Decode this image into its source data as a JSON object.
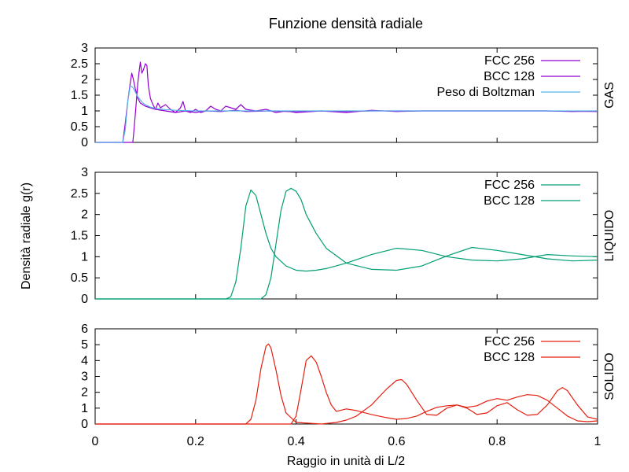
{
  "figure": {
    "title": "Funzione densità radiale",
    "xlabel": "Raggio in unità di L/2",
    "ylabel": "Densità radiale g(r)"
  },
  "chart_data": [
    {
      "type": "line",
      "panel_label": "GAS",
      "xlim": [
        0,
        1
      ],
      "ylim": [
        0,
        3
      ],
      "yticks": [
        "0",
        "0.5",
        "1",
        "1.5",
        "2",
        "2.5",
        "3"
      ],
      "grid": false,
      "legend": "top-right",
      "series": [
        {
          "name": "FCC 256",
          "color": "#9400d3",
          "x": [
            0.0,
            0.075,
            0.078,
            0.082,
            0.085,
            0.088,
            0.09,
            0.093,
            0.096,
            0.1,
            0.103,
            0.106,
            0.11,
            0.115,
            0.12,
            0.125,
            0.13,
            0.14,
            0.15,
            0.16,
            0.17,
            0.175,
            0.18,
            0.19,
            0.2,
            0.21,
            0.22,
            0.23,
            0.24,
            0.25,
            0.26,
            0.27,
            0.28,
            0.29,
            0.3,
            0.32,
            0.34,
            0.36,
            0.38,
            0.4,
            0.45,
            0.5,
            0.55,
            0.6,
            0.65,
            0.7,
            0.75,
            0.8,
            0.85,
            0.9,
            0.95,
            1.0
          ],
          "y": [
            0,
            0,
            0.5,
            1.3,
            1.9,
            2.3,
            2.55,
            2.2,
            2.3,
            2.5,
            2.45,
            1.8,
            1.4,
            1.2,
            1.05,
            1.25,
            1.1,
            1.2,
            1.05,
            0.95,
            1.1,
            1.3,
            1.0,
            0.95,
            1.05,
            0.95,
            1.0,
            1.15,
            1.05,
            1.0,
            1.15,
            1.1,
            1.05,
            1.2,
            1.05,
            1.0,
            1.05,
            0.95,
            1.0,
            0.95,
            1.0,
            0.95,
            1.02,
            0.98,
            1.0,
            1.0,
            1.0,
            1.0,
            1.0,
            1.0,
            0.98,
            1.0
          ]
        },
        {
          "name": "BCC 128",
          "color": "#9400d3",
          "x": [
            0.0,
            0.055,
            0.06,
            0.065,
            0.07,
            0.073,
            0.076,
            0.08,
            0.085,
            0.09,
            0.1,
            0.11,
            0.12,
            0.14,
            0.16,
            0.18,
            0.2,
            0.22,
            0.25,
            0.28,
            0.3,
            0.35,
            0.4,
            0.45,
            0.5,
            0.55,
            0.6,
            0.7,
            0.8,
            0.9,
            1.0
          ],
          "y": [
            0,
            0,
            0.6,
            1.3,
            1.9,
            2.2,
            2.0,
            1.7,
            1.4,
            1.25,
            1.15,
            1.1,
            1.05,
            1.0,
            0.95,
            1.0,
            0.95,
            1.0,
            0.98,
            1.02,
            0.98,
            1.0,
            0.97,
            1.0,
            0.98,
            1.0,
            1.0,
            1.0,
            1.0,
            1.0,
            0.98
          ]
        },
        {
          "name": "Peso di Boltzman",
          "color": "#56b4e9",
          "x": [
            0.0,
            0.055,
            0.06,
            0.065,
            0.07,
            0.075,
            0.08,
            0.085,
            0.09,
            0.095,
            0.1,
            0.11,
            0.12,
            0.14,
            0.16,
            0.2,
            0.3,
            0.4,
            0.6,
            0.8,
            1.0
          ],
          "y": [
            0,
            0,
            0.4,
            1.3,
            1.8,
            1.75,
            1.6,
            1.45,
            1.35,
            1.25,
            1.2,
            1.12,
            1.08,
            1.04,
            1.02,
            1.0,
            1.0,
            1.0,
            1.0,
            1.0,
            1.0
          ]
        }
      ]
    },
    {
      "type": "line",
      "panel_label": "LIQUIDO",
      "xlim": [
        0,
        1
      ],
      "ylim": [
        0,
        3
      ],
      "yticks": [
        "0",
        "0.5",
        "1",
        "1.5",
        "2",
        "2.5",
        "3"
      ],
      "grid": false,
      "legend": "top-right",
      "series": [
        {
          "name": "FCC 256",
          "color": "#009e73",
          "x": [
            0.0,
            0.26,
            0.27,
            0.28,
            0.29,
            0.3,
            0.31,
            0.32,
            0.33,
            0.34,
            0.35,
            0.36,
            0.38,
            0.4,
            0.42,
            0.44,
            0.46,
            0.5,
            0.55,
            0.6,
            0.65,
            0.7,
            0.75,
            0.8,
            0.85,
            0.9,
            0.95,
            1.0
          ],
          "y": [
            0,
            0,
            0.05,
            0.4,
            1.2,
            2.2,
            2.58,
            2.45,
            2.0,
            1.55,
            1.2,
            1.0,
            0.78,
            0.68,
            0.66,
            0.68,
            0.72,
            0.85,
            1.05,
            1.2,
            1.15,
            1.0,
            0.92,
            0.9,
            0.95,
            1.05,
            1.02,
            1.0
          ]
        },
        {
          "name": "BCC 128",
          "color": "#009e73",
          "x": [
            0.0,
            0.33,
            0.34,
            0.35,
            0.36,
            0.37,
            0.38,
            0.39,
            0.4,
            0.41,
            0.42,
            0.44,
            0.46,
            0.5,
            0.55,
            0.6,
            0.65,
            0.7,
            0.75,
            0.8,
            0.85,
            0.9,
            0.95,
            1.0
          ],
          "y": [
            0,
            0,
            0.1,
            0.5,
            1.3,
            2.1,
            2.55,
            2.62,
            2.55,
            2.35,
            2.0,
            1.55,
            1.2,
            0.85,
            0.7,
            0.68,
            0.78,
            1.02,
            1.22,
            1.15,
            1.05,
            0.95,
            0.9,
            0.92
          ]
        }
      ]
    },
    {
      "type": "line",
      "panel_label": "SOLIDO",
      "xlim": [
        0,
        1
      ],
      "ylim": [
        0,
        6
      ],
      "yticks": [
        "0",
        "1",
        "2",
        "3",
        "4",
        "5",
        "6"
      ],
      "grid": false,
      "legend": "top-right",
      "series": [
        {
          "name": "FCC 256",
          "color": "#e51e10",
          "x": [
            0.0,
            0.3,
            0.31,
            0.32,
            0.33,
            0.34,
            0.345,
            0.35,
            0.36,
            0.37,
            0.38,
            0.4,
            0.45,
            0.48,
            0.5,
            0.52,
            0.55,
            0.58,
            0.6,
            0.61,
            0.62,
            0.64,
            0.66,
            0.68,
            0.7,
            0.72,
            0.74,
            0.76,
            0.78,
            0.8,
            0.82,
            0.84,
            0.86,
            0.88,
            0.9,
            0.92,
            0.93,
            0.94,
            0.96,
            0.98,
            1.0
          ],
          "y": [
            0,
            0,
            0.3,
            1.5,
            3.5,
            4.9,
            5.05,
            4.8,
            3.4,
            1.8,
            0.7,
            0.1,
            0.0,
            0.1,
            0.25,
            0.5,
            1.2,
            2.2,
            2.75,
            2.8,
            2.5,
            1.5,
            0.6,
            0.55,
            1.0,
            1.2,
            1.0,
            0.6,
            0.7,
            1.15,
            1.35,
            0.9,
            0.55,
            0.6,
            1.2,
            2.1,
            2.3,
            2.1,
            1.2,
            0.45,
            0.3
          ]
        },
        {
          "name": "BCC 128",
          "color": "#e51e10",
          "x": [
            0.0,
            0.39,
            0.4,
            0.41,
            0.42,
            0.43,
            0.44,
            0.45,
            0.46,
            0.47,
            0.48,
            0.5,
            0.52,
            0.55,
            0.58,
            0.6,
            0.62,
            0.64,
            0.66,
            0.68,
            0.7,
            0.72,
            0.74,
            0.76,
            0.78,
            0.8,
            0.82,
            0.84,
            0.86,
            0.88,
            0.9,
            0.92,
            0.94,
            0.96,
            0.98,
            1.0
          ],
          "y": [
            0,
            0,
            0.5,
            2.2,
            4.0,
            4.3,
            3.9,
            3.0,
            2.0,
            1.2,
            0.8,
            0.95,
            0.85,
            0.6,
            0.4,
            0.3,
            0.35,
            0.5,
            0.8,
            1.05,
            1.15,
            1.2,
            1.05,
            1.15,
            1.45,
            1.6,
            1.5,
            1.7,
            1.85,
            1.8,
            1.5,
            1.0,
            0.5,
            0.2,
            0.15,
            0.2
          ]
        }
      ]
    }
  ],
  "x_ticks": [
    "0",
    "0.2",
    "0.4",
    "0.6",
    "0.8",
    "1"
  ]
}
